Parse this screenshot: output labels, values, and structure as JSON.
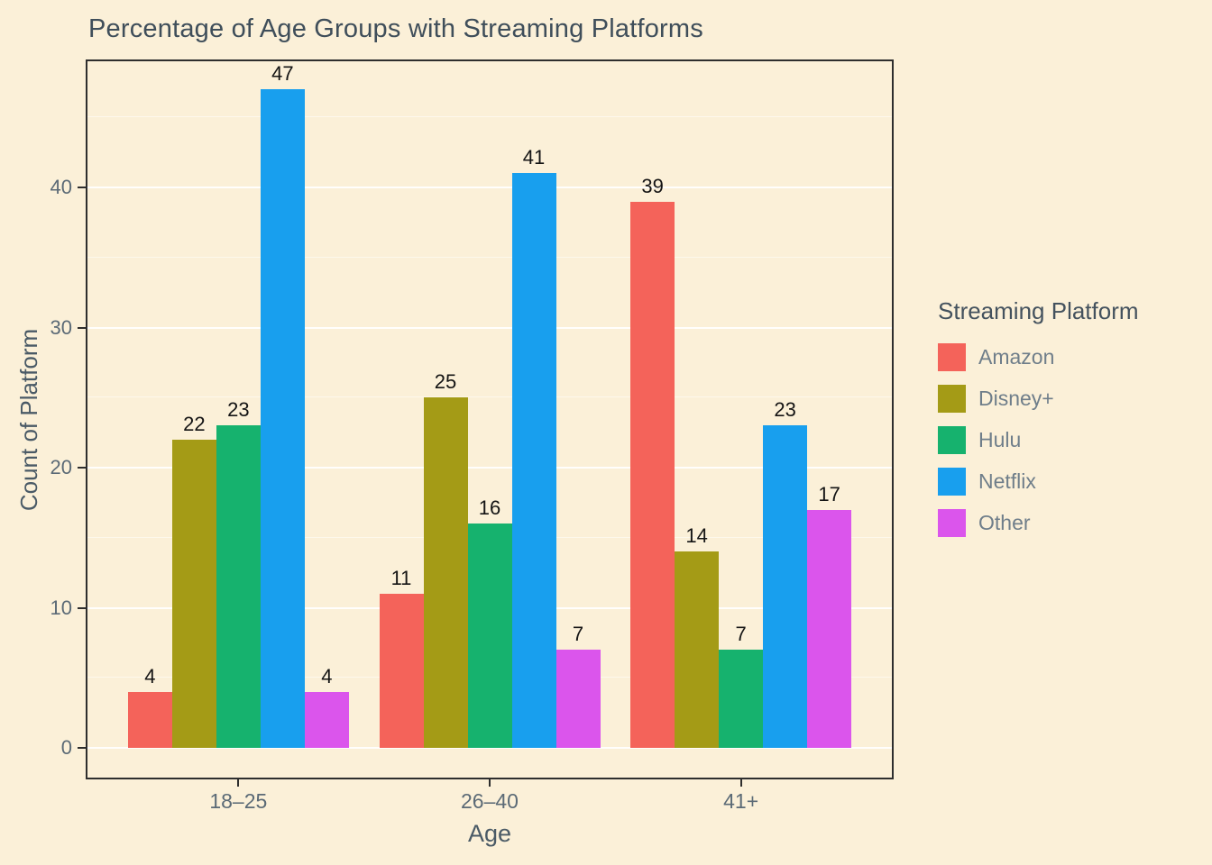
{
  "chart_data": {
    "type": "bar",
    "title": "Percentage of Age Groups with Streaming Platforms",
    "xlabel": "Age",
    "ylabel": "Count of Platform",
    "categories": [
      "18–25",
      "26–40",
      "41+"
    ],
    "series": [
      {
        "name": "Amazon",
        "color": "#F4635A",
        "values": [
          4,
          11,
          39
        ]
      },
      {
        "name": "Disney+",
        "color": "#A49B16",
        "values": [
          22,
          25,
          14
        ]
      },
      {
        "name": "Hulu",
        "color": "#16B26E",
        "values": [
          23,
          16,
          7
        ]
      },
      {
        "name": "Netflix",
        "color": "#189FEE",
        "values": [
          47,
          41,
          23
        ]
      },
      {
        "name": "Other",
        "color": "#DB55EC",
        "values": [
          4,
          7,
          17
        ]
      }
    ],
    "ylim": [
      0,
      49
    ],
    "yticks": [
      0,
      10,
      20,
      30,
      40
    ],
    "yticks_minor": [
      5,
      15,
      25,
      35,
      45
    ],
    "legend_title": "Streaming Platform",
    "legend_position": "right",
    "grid": true,
    "bar_labels": true
  },
  "colors": {
    "background": "#FBF0D8",
    "panel_border": "#2E2E2E",
    "grid_major": "rgba(255,255,255,0.92)",
    "grid_minor": "rgba(255,255,255,0.5)",
    "title_text": "#3F4E5A",
    "axis_text": "#5B6A76",
    "bar_label_text": "#141414"
  }
}
